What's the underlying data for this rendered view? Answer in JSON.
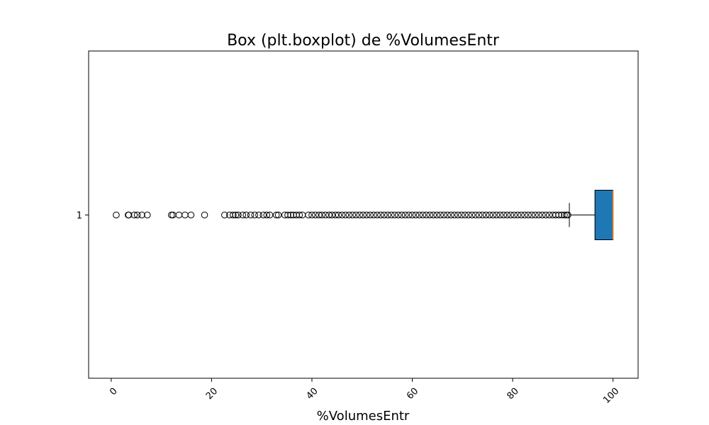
{
  "chart_data": {
    "type": "boxplot",
    "orientation": "horizontal",
    "title": "Box (plt.boxplot) de %VolumesEntr",
    "xlabel": "%VolumesEntr",
    "ylabel": "",
    "xlim": [
      -4.5,
      105
    ],
    "x_ticks": [
      0,
      20,
      40,
      60,
      80,
      100
    ],
    "x_tick_labels": [
      "0",
      "20",
      "40",
      "60",
      "80",
      "100"
    ],
    "x_tick_rotation": 45,
    "y_tick_labels": [
      "1"
    ],
    "grid": false,
    "box": {
      "category": "1",
      "whisker_low": 91.3,
      "q1": 96.4,
      "median": 100,
      "q3": 100,
      "whisker_high": 100,
      "box_color": "#1f77b4",
      "median_color": "#ff7f0e",
      "outliers": [
        1.0,
        3.4,
        3.5,
        4.6,
        5.2,
        6.1,
        7.2,
        12.0,
        12.3,
        13.5,
        14.7,
        15.9,
        18.6,
        22.6,
        23.6,
        24.3,
        24.8,
        25.3,
        26.2,
        26.9,
        27.8,
        28.6,
        29.4,
        30.3,
        31.0,
        31.6,
        32.9,
        33.3,
        34.6,
        35.2,
        35.8,
        36.3,
        36.9,
        37.5,
        38.1,
        39.3,
        40.0,
        40.7,
        41.4,
        42.0,
        42.7,
        43.4,
        44.0,
        44.7,
        45.3,
        46.0,
        46.7,
        47.4,
        48.1,
        48.8,
        49.5,
        50.2,
        50.9,
        51.6,
        52.3,
        53.0,
        53.7,
        54.4,
        55.1,
        55.8,
        56.5,
        57.2,
        57.9,
        58.6,
        59.3,
        60.0,
        60.7,
        61.4,
        62.1,
        62.8,
        63.5,
        64.2,
        64.9,
        65.6,
        66.3,
        67.0,
        67.7,
        68.4,
        69.1,
        69.8,
        70.5,
        71.2,
        71.9,
        72.6,
        73.3,
        74.0,
        74.7,
        75.4,
        76.1,
        76.8,
        77.5,
        78.2,
        78.9,
        79.6,
        80.3,
        81.0,
        81.7,
        82.4,
        83.1,
        83.8,
        84.5,
        85.2,
        85.9,
        86.6,
        87.3,
        88.0,
        88.6,
        89.2,
        89.8,
        90.3,
        90.7,
        91.0
      ]
    }
  }
}
